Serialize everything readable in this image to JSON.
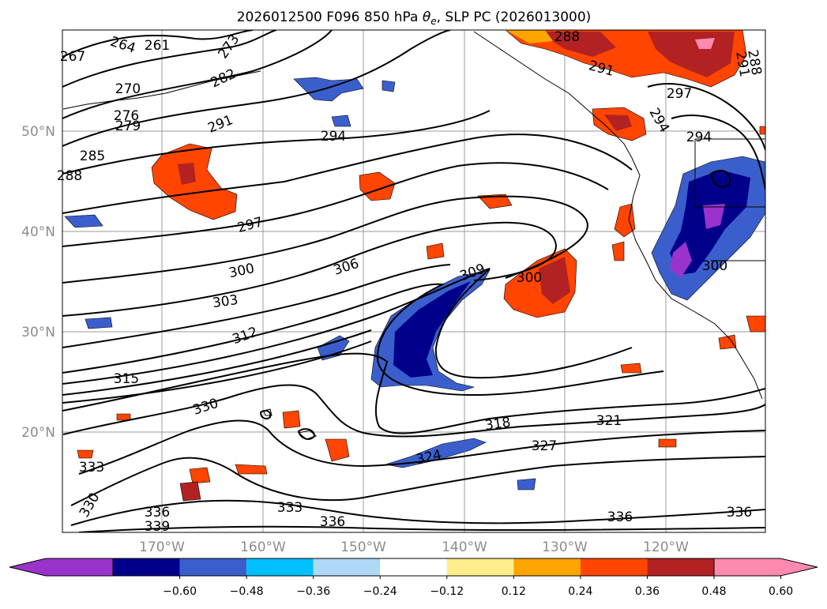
{
  "title": {
    "prefix": "2026012500 F096 850 hPa ",
    "symbol": "θ",
    "subscript": "e",
    "suffix": ", SLP PC (2026013000)"
  },
  "lat_ticks": [
    "50°N",
    "40°N",
    "30°N",
    "20°N"
  ],
  "lon_ticks": [
    "170°W",
    "160°W",
    "150°W",
    "140°W",
    "130°W",
    "120°W"
  ],
  "contour_labels": [
    "261",
    "264",
    "267",
    "270",
    "276",
    "279",
    "282",
    "285",
    "288",
    "291",
    "294",
    "297",
    "300",
    "303",
    "306",
    "309",
    "312",
    "315",
    "318",
    "321",
    "324",
    "327",
    "330",
    "333",
    "336",
    "339",
    "273",
    "288",
    "291",
    "297",
    "294",
    "294",
    "300",
    "300"
  ],
  "colorbar": {
    "ticks": [
      "−0.60",
      "−0.48",
      "−0.36",
      "−0.24",
      "−0.12",
      "0.12",
      "0.24",
      "0.36",
      "0.48",
      "0.60"
    ],
    "colors": [
      "#9933cc",
      "#00008b",
      "#3a5fcd",
      "#00bfff",
      "#add8f6",
      "#ffffff",
      "#ffec8b",
      "#ffa500",
      "#ff4500",
      "#b22222",
      "#ff8ab0"
    ]
  },
  "map": {
    "lat_range": [
      "~10°N",
      "~60°N"
    ],
    "lon_range": [
      "~180°W",
      "~110°W"
    ],
    "fill_variable": "SLP pattern correlation",
    "contour_variable": "850 hPa theta-e (K)"
  }
}
